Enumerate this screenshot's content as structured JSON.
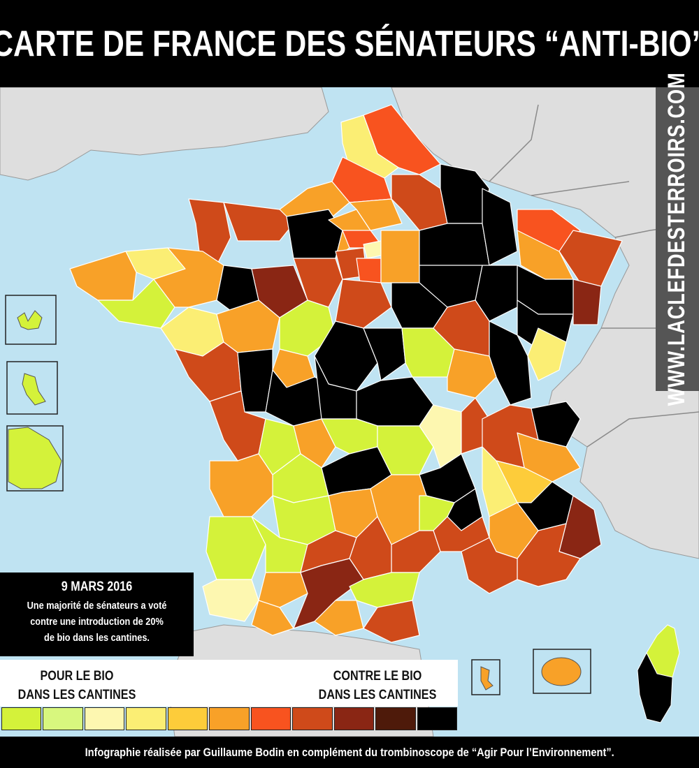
{
  "title": "CARTE DE FRANCE DES SÉNATEURS “ANTI-BIO”",
  "website": "WWW.LACLEFDESTERROIRS.COM",
  "info_box": {
    "date": "9 MARS 2016",
    "description": "Une majorité de sénateurs a voté contre une introduction de 20% de bio dans les cantines."
  },
  "legend": {
    "left_label_line1": "POUR LE BIO",
    "left_label_line2": "DANS LES CANTINES",
    "right_label_line1": "CONTRE LE BIO",
    "right_label_line2": "DANS LES CANTINES",
    "scale_colors": [
      "#d4f23a",
      "#d8f77e",
      "#fdf7b0",
      "#fbee74",
      "#fdcc3a",
      "#f8a128",
      "#f8531f",
      "#cf4a1a",
      "#8a2614",
      "#4e1a0a",
      "#000000"
    ]
  },
  "footer": "Infographie réalisée par Guillaume Bodin en complément du trombinoscope de “Agir Pour l’Environnement”.",
  "colors": {
    "sea": "#bfe3f2",
    "neighbors": "#dedede",
    "border": "#ffffff"
  }
}
